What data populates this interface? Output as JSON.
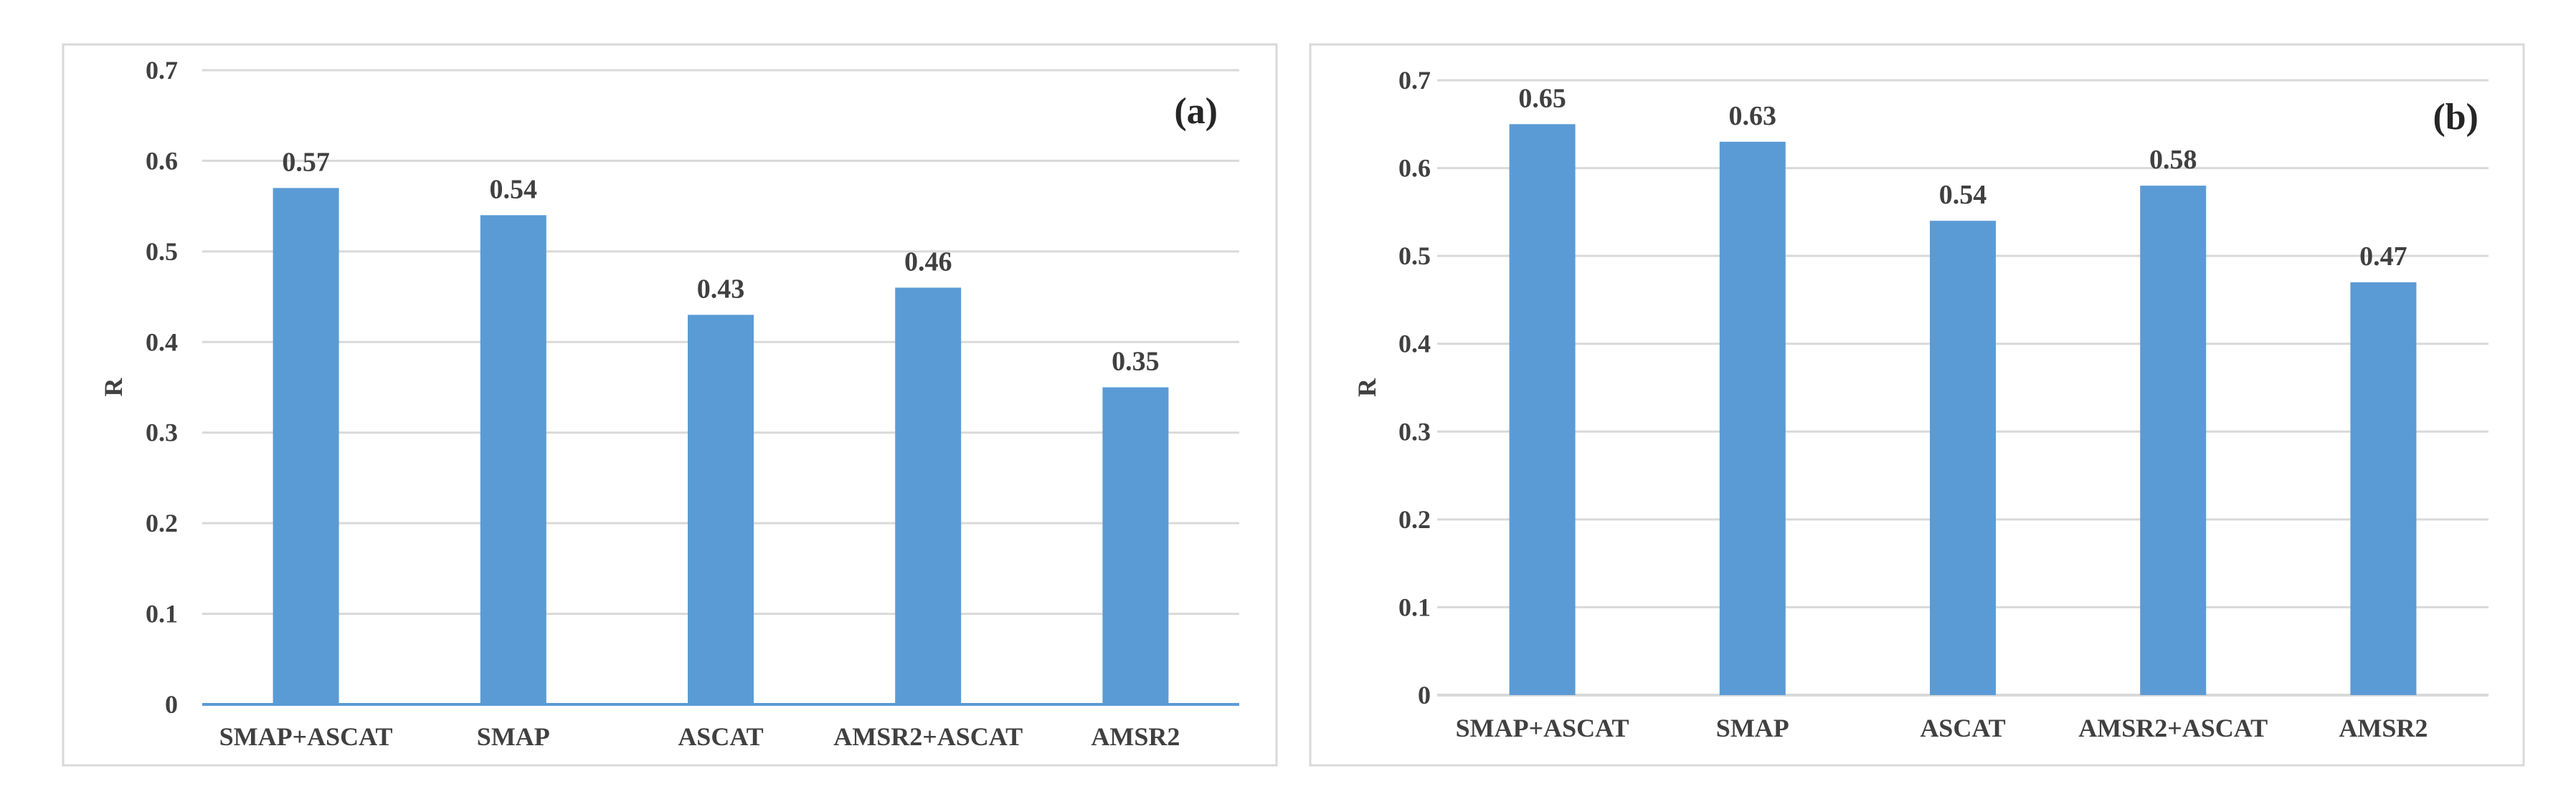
{
  "chart_data": [
    {
      "type": "bar",
      "panel_label": "(a)",
      "ylabel": "R",
      "xlabel": "",
      "ylim": [
        0,
        0.7
      ],
      "yticks": [
        "0",
        "0.1",
        "0.2",
        "0.3",
        "0.4",
        "0.5",
        "0.6",
        "0.7"
      ],
      "categories": [
        "SMAP+ASCAT",
        "SMAP",
        "ASCAT",
        "AMSR2+ASCAT",
        "AMSR2"
      ],
      "values": [
        0.57,
        0.54,
        0.43,
        0.46,
        0.35
      ],
      "value_labels": [
        "0.57",
        "0.54",
        "0.43",
        "0.46",
        "0.35"
      ],
      "grid": true,
      "bar_color": "#5b9bd5",
      "baseline_color": "#5b9bd5"
    },
    {
      "type": "bar",
      "panel_label": "(b)",
      "ylabel": "R",
      "xlabel": "",
      "ylim": [
        0,
        0.7
      ],
      "yticks": [
        "0",
        "0.1",
        "0.2",
        "0.3",
        "0.4",
        "0.5",
        "0.6",
        "0.7"
      ],
      "categories": [
        "SMAP+ASCAT",
        "SMAP",
        "ASCAT",
        "AMSR2+ASCAT",
        "AMSR2"
      ],
      "values": [
        0.65,
        0.63,
        0.54,
        0.58,
        0.47
      ],
      "value_labels": [
        "0.65",
        "0.63",
        "0.54",
        "0.58",
        "0.47"
      ],
      "grid": true,
      "bar_color": "#5b9bd5",
      "baseline_color": "#d9d9d9"
    }
  ]
}
